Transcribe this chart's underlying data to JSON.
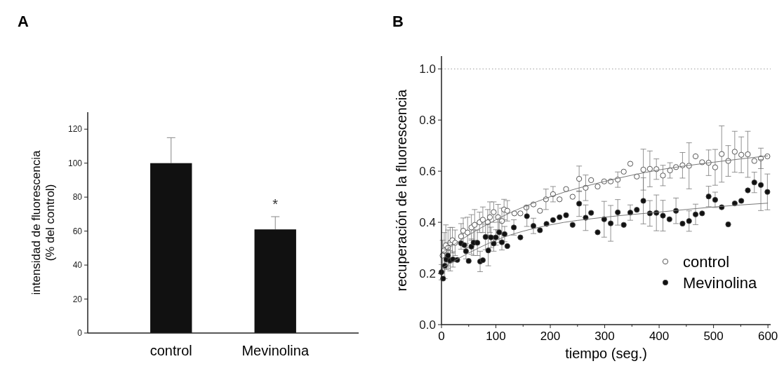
{
  "chart_data": [
    {
      "type": "bar",
      "title": "A",
      "categories": [
        "control",
        "Mevinolina"
      ],
      "values": [
        100,
        61
      ],
      "errors": [
        [
          100,
          115
        ],
        [
          61,
          68.5
        ]
      ],
      "color": "#111111",
      "ylabel": "intensidad de fluorescencia\n(% del control)",
      "ylim": [
        0,
        130
      ],
      "yticks": [
        0,
        20,
        40,
        60,
        80,
        100,
        120
      ],
      "annotations": [
        "*"
      ]
    },
    {
      "type": "scatter",
      "title": "B",
      "xlabel": "tiempo (seg.)",
      "ylabel": "recuperación de la fluorescencia",
      "xlim": [
        0,
        605
      ],
      "xticks": [
        0,
        100,
        200,
        300,
        400,
        500,
        600
      ],
      "ylim": [
        0,
        1.05
      ],
      "yticks": [
        {
          "value": 0,
          "label": "0.0"
        },
        0.2,
        0.4,
        0.6,
        0.8,
        {
          "value": 1,
          "label": "1.0"
        }
      ],
      "legend": "bottom right",
      "ref_lines": [
        {
          "axis": "y",
          "value": 1,
          "color": "#999999",
          "line_style": "dotted"
        }
      ],
      "series": [
        {
          "name": "control",
          "color": "#ffffff",
          "marker": "circle",
          "x": [
            2,
            5,
            8,
            12,
            16,
            20,
            25,
            36,
            40,
            48,
            55,
            61,
            70,
            76,
            85,
            89,
            96,
            104,
            111,
            115,
            121,
            134,
            145,
            156,
            169,
            181,
            192,
            205,
            217,
            229,
            241,
            253,
            265,
            275,
            287,
            299,
            311,
            324,
            335,
            347,
            359,
            371,
            383,
            395,
            407,
            420,
            431,
            443,
            455,
            467,
            479,
            491,
            503,
            515,
            527,
            539,
            551,
            563,
            575,
            587,
            599
          ],
          "values": [
            0.27,
            0.29,
            0.31,
            0.3,
            0.32,
            0.33,
            0.32,
            0.345,
            0.367,
            0.36,
            0.38,
            0.39,
            0.4,
            0.41,
            0.4,
            0.42,
            0.44,
            0.42,
            0.405,
            0.45,
            0.445,
            0.435,
            0.435,
            0.458,
            0.47,
            0.445,
            0.49,
            0.51,
            0.49,
            0.53,
            0.5,
            0.57,
            0.535,
            0.565,
            0.54,
            0.56,
            0.56,
            0.567,
            0.598,
            0.629,
            0.579,
            0.606,
            0.609,
            0.608,
            0.583,
            0.603,
            0.616,
            0.623,
            0.621,
            0.658,
            0.635,
            0.633,
            0.615,
            0.667,
            0.64,
            0.676,
            0.664,
            0.666,
            0.64,
            0.65,
            0.658
          ],
          "errors": [
            0.06,
            0.07,
            0.08,
            0.07,
            0.06,
            0.05,
            0.05,
            0.05,
            0.05,
            0.06,
            0.05,
            0.06,
            0.04,
            0.05,
            0.05,
            0.06,
            0.04,
            0.05,
            0.05,
            0.04,
            0.04,
            null,
            null,
            null,
            null,
            null,
            0.04,
            0.03,
            null,
            null,
            null,
            0.05,
            0.05,
            null,
            null,
            null,
            null,
            0.03,
            null,
            null,
            null,
            0.08,
            0.07,
            0.04,
            0.04,
            0.03,
            null,
            0.05,
            0.09,
            null,
            null,
            0.05,
            0.07,
            0.11,
            0.06,
            0.08,
            0.07,
            0.09,
            null,
            0.04,
            null
          ]
        },
        {
          "name": "Mevinolina",
          "color": "#111111",
          "marker": "circle",
          "x": [
            0,
            3,
            6,
            9,
            12,
            16,
            21,
            29,
            36,
            42,
            45,
            50,
            55,
            59,
            66,
            71,
            76,
            81,
            86,
            91,
            96,
            100,
            106,
            111,
            116,
            121,
            133,
            145,
            157,
            169,
            181,
            193,
            205,
            217,
            229,
            241,
            253,
            265,
            275,
            287,
            299,
            311,
            324,
            335,
            347,
            359,
            371,
            383,
            395,
            407,
            419,
            431,
            443,
            455,
            467,
            479,
            491,
            503,
            515,
            527,
            539,
            551,
            563,
            575,
            587,
            599
          ],
          "values": [
            0.205,
            0.18,
            0.23,
            0.255,
            0.27,
            0.25,
            0.255,
            0.253,
            0.318,
            0.311,
            0.287,
            0.249,
            0.305,
            0.32,
            0.32,
            0.247,
            0.252,
            0.343,
            0.29,
            0.341,
            0.317,
            0.341,
            0.361,
            0.322,
            0.354,
            0.307,
            0.38,
            0.341,
            0.424,
            0.386,
            0.369,
            0.394,
            0.409,
            0.42,
            0.428,
            0.39,
            0.473,
            0.418,
            0.437,
            0.361,
            0.412,
            0.396,
            0.439,
            0.39,
            0.438,
            0.449,
            0.484,
            0.435,
            0.437,
            0.426,
            0.412,
            0.445,
            0.395,
            0.405,
            0.431,
            0.435,
            0.501,
            0.488,
            0.459,
            0.392,
            0.474,
            0.484,
            0.525,
            0.556,
            0.546,
            0.519
          ],
          "errors": [
            0.03,
            null,
            0.05,
            0.04,
            0.05,
            0.04,
            0.03,
            null,
            null,
            null,
            0.03,
            null,
            0.03,
            0.05,
            0.05,
            0.04,
            null,
            0.05,
            0.06,
            0.04,
            0.03,
            0.03,
            0.04,
            0.03,
            0.03,
            null,
            0.03,
            null,
            0.04,
            0.03,
            null,
            null,
            null,
            null,
            null,
            null,
            0.05,
            0.05,
            null,
            null,
            0.07,
            0.07,
            0.05,
            null,
            0.03,
            null,
            0.09,
            0.05,
            0.07,
            0.06,
            null,
            0.05,
            null,
            0.04,
            0.04,
            null,
            0.04,
            0.03,
            null,
            null,
            null,
            null,
            null,
            0.04,
            0.1,
            0.07
          ]
        },
        {
          "type": "line",
          "color": "#777777",
          "x": [
            0,
            50,
            100,
            200,
            300,
            400,
            500,
            600
          ],
          "values": [
            0.28,
            0.35,
            0.41,
            0.5,
            0.56,
            0.605,
            0.635,
            0.66
          ]
        },
        {
          "type": "line",
          "color": "#777777",
          "x": [
            0,
            50,
            100,
            200,
            300,
            400,
            500,
            600
          ],
          "values": [
            0.22,
            0.28,
            0.33,
            0.39,
            0.42,
            0.44,
            0.46,
            0.475
          ]
        }
      ]
    }
  ]
}
